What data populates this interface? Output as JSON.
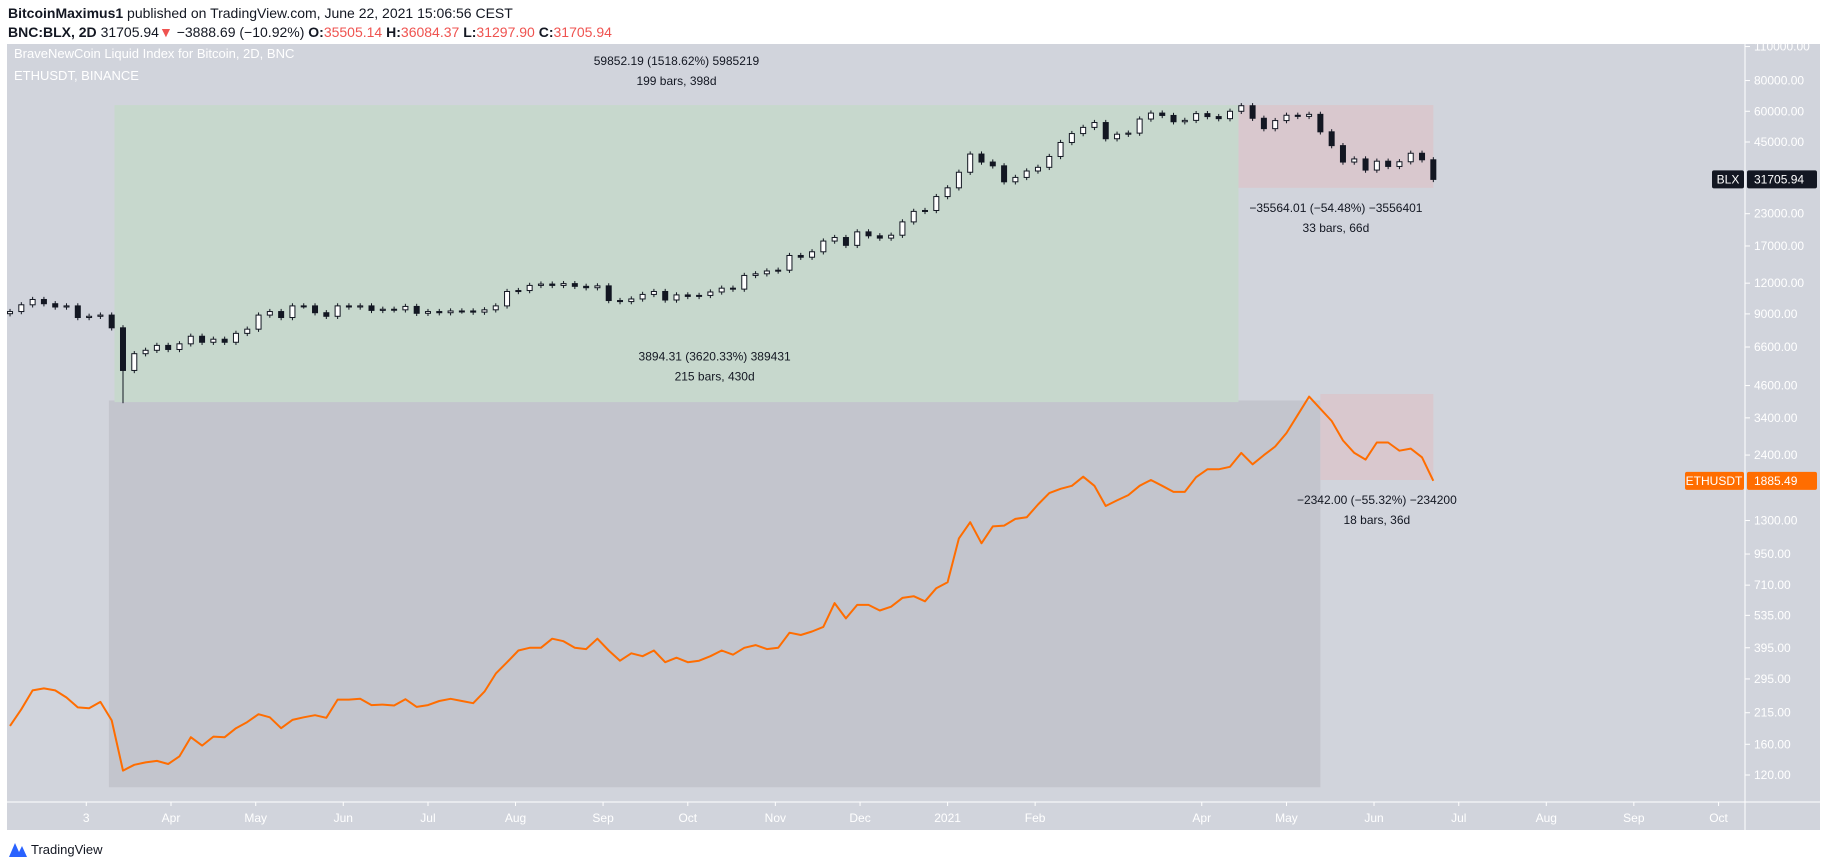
{
  "header": {
    "author": "BitcoinMaximus1",
    "published": "published on TradingView.com, June 22, 2021 15:06:56 CEST",
    "symbol": "BNC:BLX, 2D",
    "last": "31705.94",
    "change": "−3888.69 (−10.92%)",
    "open_label": "O:",
    "open": "35505.14",
    "high_label": "H:",
    "high": "36084.37",
    "low_label": "L:",
    "low": "31297.90",
    "close_label": "C:",
    "close": "31705.94",
    "down_icon": "triangle-down-icon"
  },
  "legend": {
    "main": "BraveNewCoin Liquid Index for Bitcoin, 2D, BNC",
    "overlay": "ETHUSDT, BINANCE"
  },
  "colors": {
    "pane": "#d1d4dc",
    "up_candle": "#ffffff",
    "down_candle": "#131722",
    "eth_line": "#ff6d00",
    "gain_box": "#c7d8cd",
    "gain_box_eth": "#c3c5cd",
    "loss_box": "#d9c8ce",
    "header_red": "#ef5350"
  },
  "chart_data": {
    "type": "candlestick+line",
    "scale": "log",
    "y_ticks": [
      "110000.00",
      "80000.00",
      "60000.00",
      "45000.00",
      "23000.00",
      "17000.00",
      "12000.00",
      "9000.00",
      "6600.00",
      "4600.00",
      "3400.00",
      "2400.00",
      "1300.00",
      "950.00",
      "710.00",
      "535.00",
      "395.00",
      "295.00",
      "215.00",
      "160.00",
      "120.00"
    ],
    "x_ticks": [
      {
        "text": "3",
        "date": "2020-03-02"
      },
      {
        "text": "Apr",
        "date": "2020-04-01"
      },
      {
        "text": "May",
        "date": "2020-05-01"
      },
      {
        "text": "Jun",
        "date": "2020-06-01"
      },
      {
        "text": "Jul",
        "date": "2020-07-01"
      },
      {
        "text": "Aug",
        "date": "2020-08-01"
      },
      {
        "text": "Sep",
        "date": "2020-09-01"
      },
      {
        "text": "Oct",
        "date": "2020-10-01"
      },
      {
        "text": "Nov",
        "date": "2020-11-01"
      },
      {
        "text": "Dec",
        "date": "2020-12-01"
      },
      {
        "text": "2021",
        "date": "2021-01-01"
      },
      {
        "text": "Feb",
        "date": "2021-02-01"
      },
      {
        "text": "Apr",
        "date": "2021-04-01"
      },
      {
        "text": "May",
        "date": "2021-05-01"
      },
      {
        "text": "Jun",
        "date": "2021-06-01"
      },
      {
        "text": "Jul",
        "date": "2021-07-01"
      },
      {
        "text": "Aug",
        "date": "2021-08-01"
      },
      {
        "text": "Sep",
        "date": "2021-09-01"
      },
      {
        "text": "Oct",
        "date": "2021-10-01"
      }
    ],
    "series": [
      {
        "name": "BLX",
        "kind": "candles",
        "last_label": "31705.94",
        "closes": [
          9200,
          9800,
          10300,
          9900,
          9600,
          9700,
          8700,
          8800,
          8900,
          7900,
          5300,
          6200,
          6400,
          6700,
          6450,
          6800,
          7300,
          6900,
          7100,
          6900,
          7500,
          7800,
          8900,
          9200,
          8700,
          9700,
          9700,
          9100,
          8800,
          9700,
          9600,
          9700,
          9300,
          9400,
          9350,
          9650,
          9050,
          9200,
          9100,
          9250,
          9250,
          9150,
          9350,
          9700,
          11100,
          11200,
          11750,
          11900,
          11750,
          11950,
          11650,
          11500,
          11700,
          10200,
          10100,
          10350,
          10800,
          11100,
          10250,
          10750,
          10600,
          10700,
          11050,
          11450,
          11350,
          12900,
          13100,
          13450,
          13550,
          15550,
          15300,
          16100,
          17800,
          18400,
          17100,
          19400,
          18700,
          18300,
          18800,
          21300,
          23500,
          23700,
          27000,
          29300,
          33900,
          40200,
          37300,
          36000,
          31000,
          32300,
          34300,
          35500,
          39300,
          44800,
          48700,
          51600,
          54000,
          46400,
          48400,
          48900,
          55800,
          59000,
          57700,
          54400,
          55100,
          58700,
          57100,
          56000,
          60000,
          63200,
          56200,
          51000,
          55000,
          57800,
          57200,
          58300,
          49500,
          43500,
          37300,
          38400,
          34600,
          37600,
          35800,
          37400,
          40500,
          38100,
          31706
        ]
      },
      {
        "name": "ETHUSDT",
        "kind": "line",
        "last_label": "1885.49",
        "closes": [
          190,
          222,
          265,
          270,
          265,
          248,
          226,
          224,
          238,
          200,
          125,
          132,
          135,
          137,
          133,
          143,
          171,
          158,
          172,
          171,
          186,
          197,
          212,
          206,
          186,
          201,
          206,
          210,
          205,
          243,
          243,
          245,
          231,
          232,
          230,
          244,
          227,
          231,
          240,
          245,
          240,
          235,
          262,
          310,
          345,
          385,
          395,
          395,
          430,
          420,
          395,
          390,
          430,
          385,
          350,
          375,
          365,
          385,
          345,
          360,
          345,
          350,
          365,
          385,
          370,
          395,
          405,
          390,
          395,
          455,
          445,
          460,
          480,
          600,
          520,
          590,
          590,
          560,
          580,
          630,
          640,
          610,
          690,
          730,
          1100,
          1280,
          1050,
          1230,
          1240,
          1320,
          1340,
          1510,
          1680,
          1750,
          1800,
          1960,
          1800,
          1490,
          1570,
          1650,
          1800,
          1900,
          1800,
          1700,
          1700,
          1950,
          2100,
          2100,
          2150,
          2450,
          2200,
          2400,
          2600,
          2950,
          3500,
          4150,
          3700,
          3300,
          2750,
          2450,
          2300,
          2700,
          2700,
          2500,
          2550,
          2350,
          1885.49
        ]
      }
    ],
    "measurements": [
      {
        "id": "blx-rally",
        "from": "2020-03-12",
        "to": "2021-04-14",
        "price_from": 3940,
        "price_to": 63600,
        "kind": "gain",
        "line1": "59852.19 (1518.62%) 5985219",
        "line2": "199 bars, 398d"
      },
      {
        "id": "eth-rally",
        "from": "2020-03-10",
        "to": "2021-05-13",
        "price_from": 107,
        "price_to": 4000,
        "kind": "gain_eth",
        "line1": "3894.31 (3620.33%) 389431",
        "line2": "215 bars, 430d"
      },
      {
        "id": "blx-drop",
        "from": "2021-04-14",
        "to": "2021-06-22",
        "price_from": 63600,
        "price_to": 29300,
        "kind": "loss",
        "line1": "−35564.01 (−54.48%) −3556401",
        "line2": "33 bars, 66d"
      },
      {
        "id": "eth-drop",
        "from": "2021-05-13",
        "to": "2021-06-22",
        "price_from": 4250,
        "price_to": 1900,
        "kind": "loss",
        "line1": "−2342.00 (−55.32%) −234200",
        "line2": "18 bars, 36d"
      }
    ]
  },
  "footer": {
    "brand": "TradingView"
  }
}
